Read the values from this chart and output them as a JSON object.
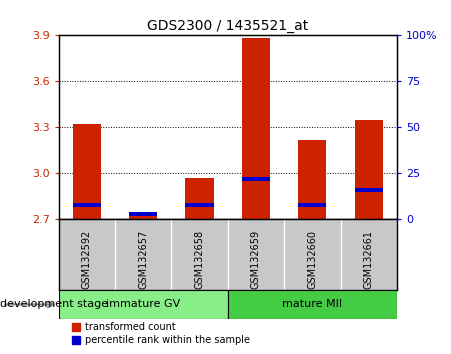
{
  "title": "GDS2300 / 1435521_at",
  "samples": [
    "GSM132592",
    "GSM132657",
    "GSM132658",
    "GSM132659",
    "GSM132660",
    "GSM132661"
  ],
  "transformed_count": [
    3.32,
    2.75,
    2.97,
    3.88,
    3.22,
    3.35
  ],
  "percentile_rank": [
    8,
    3,
    8,
    22,
    8,
    16
  ],
  "ymin": 2.7,
  "ymax": 3.9,
  "yticks": [
    2.7,
    3.0,
    3.3,
    3.6,
    3.9
  ],
  "right_yticks": [
    0,
    25,
    50,
    75,
    100
  ],
  "right_yticklabels": [
    "0",
    "25",
    "50",
    "75",
    "100%"
  ],
  "groups": [
    {
      "label": "immature GV",
      "n": 3,
      "color": "#88EE88"
    },
    {
      "label": "mature MII",
      "n": 3,
      "color": "#44CC44"
    }
  ],
  "bar_color_red": "#CC2200",
  "bar_color_blue": "#0000CC",
  "bar_width": 0.5,
  "label_area_bg": "#C8C8C8",
  "label_divider_color": "#FFFFFF",
  "legend_red_label": "transformed count",
  "legend_blue_label": "percentile rank within the sample",
  "dev_stage_label": "development stage",
  "left_tick_color": "#CC2200",
  "right_tick_color": "#0000CC",
  "title_fontsize": 10,
  "tick_fontsize": 8,
  "sample_fontsize": 7,
  "group_fontsize": 8,
  "legend_fontsize": 7,
  "dev_stage_fontsize": 8
}
